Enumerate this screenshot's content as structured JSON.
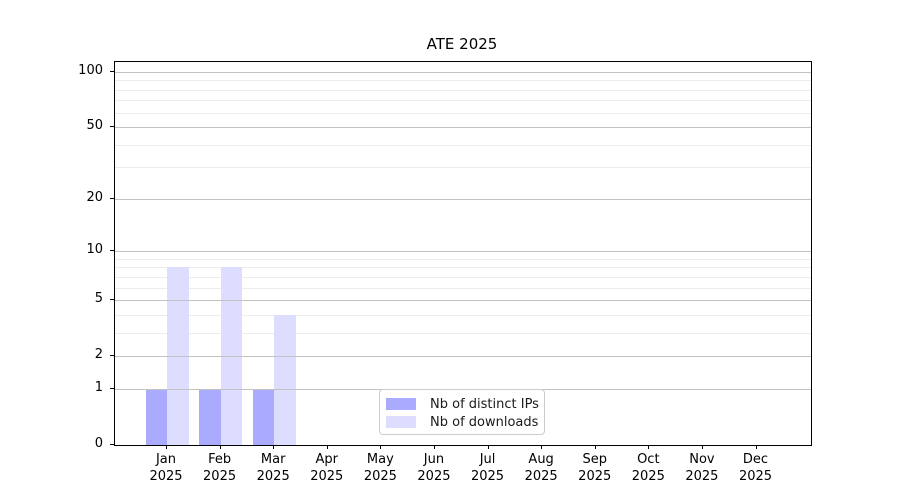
{
  "chart_data": {
    "type": "bar",
    "title": "ATE 2025",
    "categories": [
      "Jan",
      "Feb",
      "Mar",
      "Apr",
      "May",
      "Jun",
      "Jul",
      "Aug",
      "Sep",
      "Oct",
      "Nov",
      "Dec"
    ],
    "year_label": "2025",
    "series": [
      {
        "name": "Nb of distinct IPs",
        "color": "#aaaaff",
        "values": [
          1,
          1,
          1,
          0,
          0,
          0,
          0,
          0,
          0,
          0,
          0,
          0
        ]
      },
      {
        "name": "Nb of downloads",
        "color": "#ddddff",
        "values": [
          8,
          8,
          4,
          0,
          0,
          0,
          0,
          0,
          0,
          0,
          0,
          0
        ]
      }
    ],
    "xlabel": "",
    "ylabel": "",
    "yscale": "log1p",
    "ylim": [
      0,
      113
    ],
    "yticks": [
      0,
      1,
      2,
      5,
      10,
      20,
      50,
      100
    ],
    "yticklabels": [
      "0",
      "1",
      "2",
      "5",
      "10",
      "20",
      "50",
      "100"
    ],
    "yminorticks": [
      3,
      4,
      6,
      7,
      8,
      9,
      30,
      40,
      60,
      70,
      80,
      90
    ],
    "grid": true,
    "legend_position": "lower center"
  }
}
